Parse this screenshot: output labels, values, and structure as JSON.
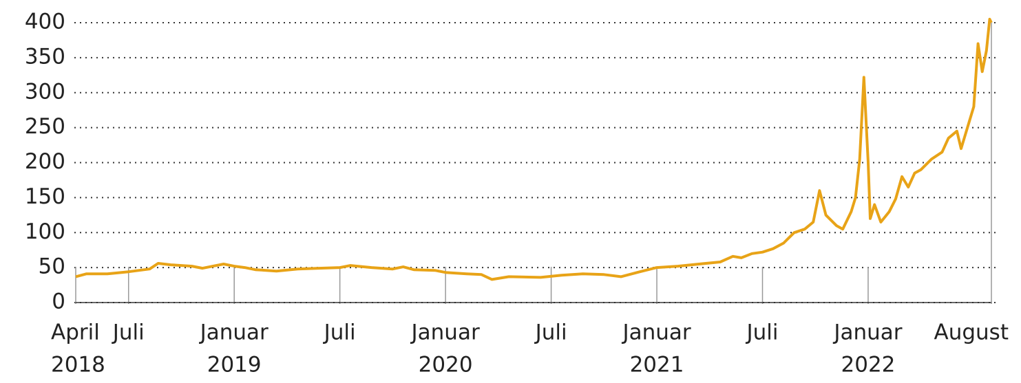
{
  "chart_data": {
    "type": "line",
    "x": [
      2018.25,
      2018.3,
      2018.4,
      2018.5,
      2018.6,
      2018.64,
      2018.7,
      2018.8,
      2018.85,
      2018.95,
      2019.0,
      2019.05,
      2019.1,
      2019.2,
      2019.3,
      2019.4,
      2019.5,
      2019.55,
      2019.65,
      2019.75,
      2019.8,
      2019.85,
      2019.95,
      2020.0,
      2020.1,
      2020.17,
      2020.22,
      2020.3,
      2020.45,
      2020.55,
      2020.65,
      2020.75,
      2020.83,
      2020.92,
      2021.0,
      2021.1,
      2021.2,
      2021.3,
      2021.36,
      2021.4,
      2021.45,
      2021.5,
      2021.55,
      2021.6,
      2021.65,
      2021.7,
      2021.74,
      2021.77,
      2021.8,
      2021.85,
      2021.88,
      2021.92,
      2021.94,
      2021.96,
      2021.98,
      2022.0,
      2022.01,
      2022.03,
      2022.06,
      2022.1,
      2022.13,
      2022.16,
      2022.19,
      2022.22,
      2022.25,
      2022.3,
      2022.35,
      2022.38,
      2022.42,
      2022.44,
      2022.47,
      2022.5,
      2022.52,
      2022.54,
      2022.56,
      2022.575,
      2022.583
    ],
    "series": [
      {
        "color": "#e8a317",
        "values": [
          37,
          41,
          41,
          44,
          48,
          56,
          54,
          52,
          49,
          55,
          52,
          50,
          47,
          45,
          48,
          49,
          50,
          53,
          50,
          48,
          51,
          47,
          46,
          43,
          41,
          40,
          33,
          37,
          36,
          39,
          41,
          40,
          37,
          44,
          50,
          52,
          55,
          58,
          66,
          64,
          70,
          72,
          77,
          85,
          100,
          105,
          115,
          160,
          125,
          110,
          105,
          130,
          150,
          205,
          322,
          200,
          120,
          140,
          115,
          130,
          148,
          180,
          165,
          185,
          190,
          205,
          215,
          235,
          245,
          220,
          250,
          280,
          370,
          330,
          360,
          405,
          400
        ]
      }
    ],
    "xlim": [
      2018.25,
      2022.5833
    ],
    "xticks": [
      {
        "value": 2018.25,
        "label": "April"
      },
      {
        "value": 2018.5,
        "label": "Juli"
      },
      {
        "value": 2019,
        "label": "Januar"
      },
      {
        "value": 2019.5,
        "label": "Juli"
      },
      {
        "value": 2020,
        "label": "Januar"
      },
      {
        "value": 2020.5,
        "label": "Juli"
      },
      {
        "value": 2021,
        "label": "Januar"
      },
      {
        "value": 2021.5,
        "label": "Juli"
      },
      {
        "value": 2022,
        "label": "Januar"
      },
      {
        "value": 2022.5833,
        "label": "August"
      }
    ],
    "xticks_year": [
      {
        "value": 2018.25,
        "label": "2018"
      },
      {
        "value": 2019,
        "label": "2019"
      },
      {
        "value": 2020,
        "label": "2020"
      },
      {
        "value": 2021,
        "label": "2021"
      },
      {
        "value": 2022,
        "label": "2022"
      }
    ],
    "ylim": [
      0,
      400
    ],
    "yticks": [
      0,
      50,
      100,
      150,
      200,
      250,
      300,
      350,
      400
    ],
    "grid": true
  }
}
